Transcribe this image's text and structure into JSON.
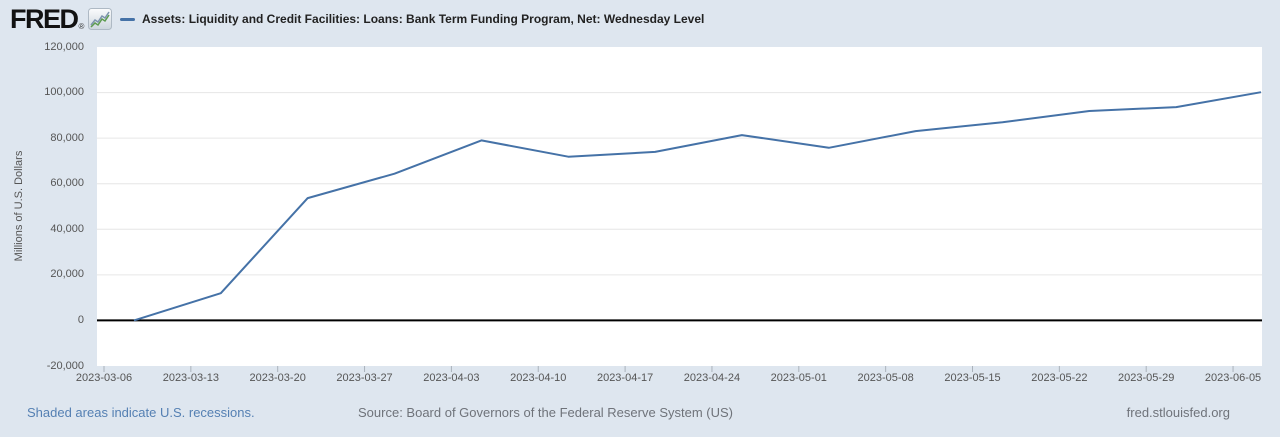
{
  "header": {
    "logo_text": "FRED",
    "registered_mark": "®"
  },
  "footer": {
    "recessions_note": "Shaded areas indicate U.S. recessions.",
    "source": "Source: Board of Governors of the Federal Reserve System (US)",
    "site": "fred.stlouisfed.org"
  },
  "colors": {
    "page_background": "#dee6ef",
    "plot_background": "#ffffff",
    "gridline": "#e6e6e6",
    "zero_line": "#000000",
    "series_line": "#4572a7",
    "axis_text": "#555555",
    "tick_mark": "#aab2bb",
    "footer_link": "#5580b3",
    "footer_gray": "#6f737a"
  },
  "chart_data": {
    "type": "line",
    "title": "",
    "xlabel": "",
    "ylabel": "Millions of U.S. Dollars",
    "ylim": [
      -20000,
      120000
    ],
    "grid": "horizontal-only",
    "legend_position": "top-header",
    "line_color": "#4572a7",
    "zero_line_color": "#000000",
    "y_tick_values": [
      120000,
      100000,
      80000,
      60000,
      40000,
      20000,
      0,
      -20000
    ],
    "y_tick_labels": [
      "120,000",
      "100,000",
      "80,000",
      "60,000",
      "40,000",
      "20,000",
      "0",
      "-20,000"
    ],
    "x_tick_labels": [
      "2023-03-06",
      "2023-03-13",
      "2023-03-20",
      "2023-03-27",
      "2023-04-03",
      "2023-04-10",
      "2023-04-17",
      "2023-04-24",
      "2023-05-01",
      "2023-05-08",
      "2023-05-15",
      "2023-05-22",
      "2023-05-29",
      "2023-06-05"
    ],
    "series": [
      {
        "name": "Assets: Liquidity and Credit Facilities: Loans: Bank Term Funding Program, Net: Wednesday Level",
        "x": [
          "2023-03-08",
          "2023-03-15",
          "2023-03-22",
          "2023-03-29",
          "2023-04-05",
          "2023-04-12",
          "2023-04-19",
          "2023-04-26",
          "2023-05-03",
          "2023-05-10",
          "2023-05-17",
          "2023-05-24",
          "2023-05-31",
          "2023-06-07"
        ],
        "values": [
          0,
          11943,
          53669,
          64403,
          79021,
          71837,
          73982,
          81327,
          75778,
          83101,
          87006,
          91907,
          93615,
          100161
        ]
      }
    ]
  }
}
